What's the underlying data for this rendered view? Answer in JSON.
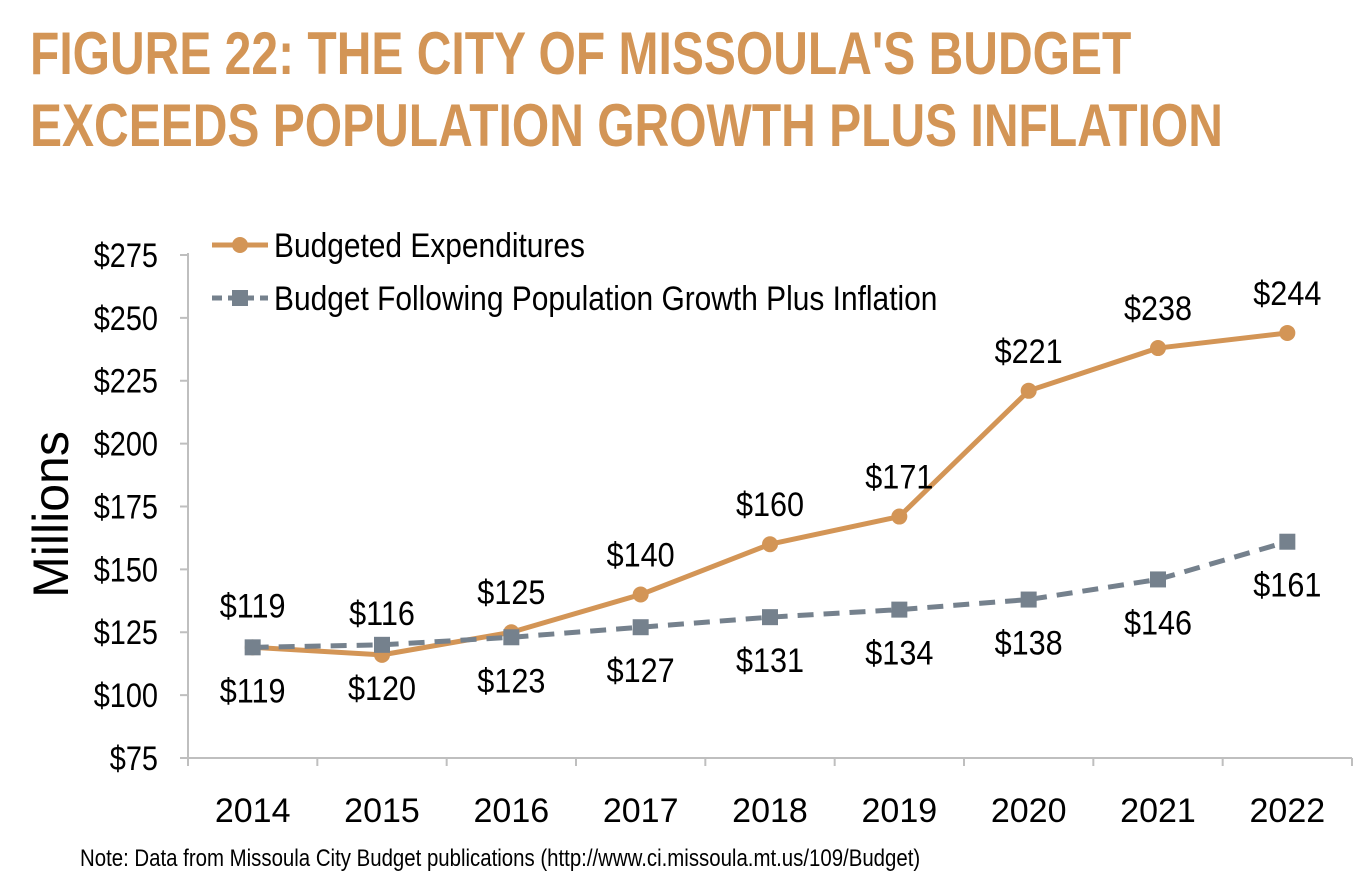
{
  "title_line1": "FIGURE 22: THE CITY OF MISSOULA'S BUDGET",
  "title_line2": "EXCEEDS POPULATION GROWTH PLUS INFLATION",
  "note": "Note: Data from Missoula City Budget publications (http://www.ci.missoula.mt.us/109/Budget)",
  "colors": {
    "title": "#d39556",
    "budgeted": "#d39556",
    "population": "#75818d"
  },
  "chart_data": {
    "type": "line",
    "title": "",
    "xlabel": "",
    "ylabel": "Millions",
    "ylim": [
      75,
      275
    ],
    "yticks": [
      75,
      100,
      125,
      150,
      175,
      200,
      225,
      250,
      275
    ],
    "ytick_labels": [
      "$75",
      "$100",
      "$125",
      "$150",
      "$175",
      "$200",
      "$225",
      "$250",
      "$275"
    ],
    "x": [
      "2014",
      "2015",
      "2016",
      "2017",
      "2018",
      "2019",
      "2020",
      "2021",
      "2022"
    ],
    "legend_position": "top-left",
    "grid": false,
    "series": [
      {
        "name": "Budgeted Expenditures",
        "values": [
          119,
          116,
          125,
          140,
          160,
          171,
          221,
          238,
          244
        ],
        "labels": [
          "$119",
          "$116",
          "$125",
          "$140",
          "$160",
          "$171",
          "$221",
          "$238",
          "$244"
        ],
        "marker": "circle",
        "style": "solid",
        "color": "#d39556"
      },
      {
        "name": "Budget Following Population Growth Plus Inflation",
        "values": [
          119,
          120,
          123,
          127,
          131,
          134,
          138,
          146,
          161
        ],
        "labels": [
          "$119",
          "$120",
          "$123",
          "$127",
          "$131",
          "$134",
          "$138",
          "$146",
          "$161"
        ],
        "marker": "square",
        "style": "dashed",
        "color": "#75818d"
      }
    ]
  }
}
